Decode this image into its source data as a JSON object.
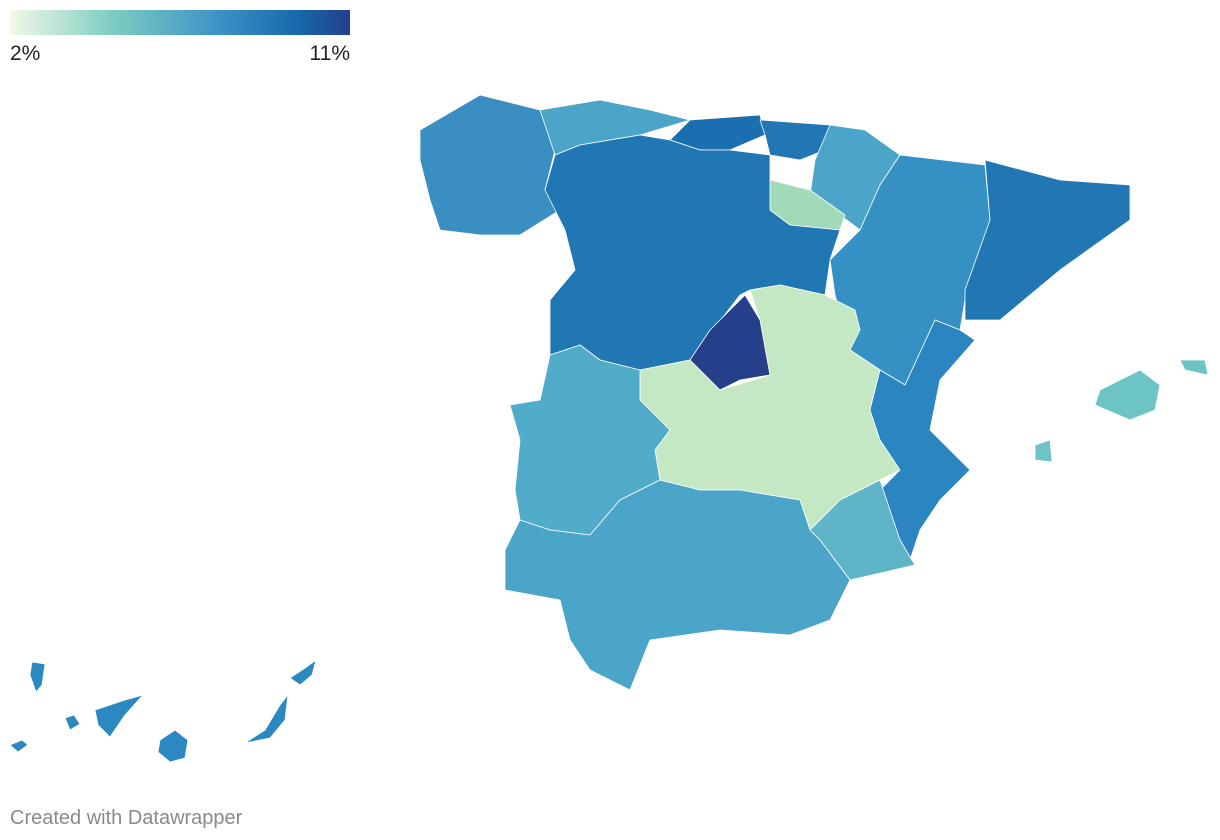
{
  "legend": {
    "min_label": "2%",
    "max_label": "11%"
  },
  "footer": "Created with Datawrapper"
}
